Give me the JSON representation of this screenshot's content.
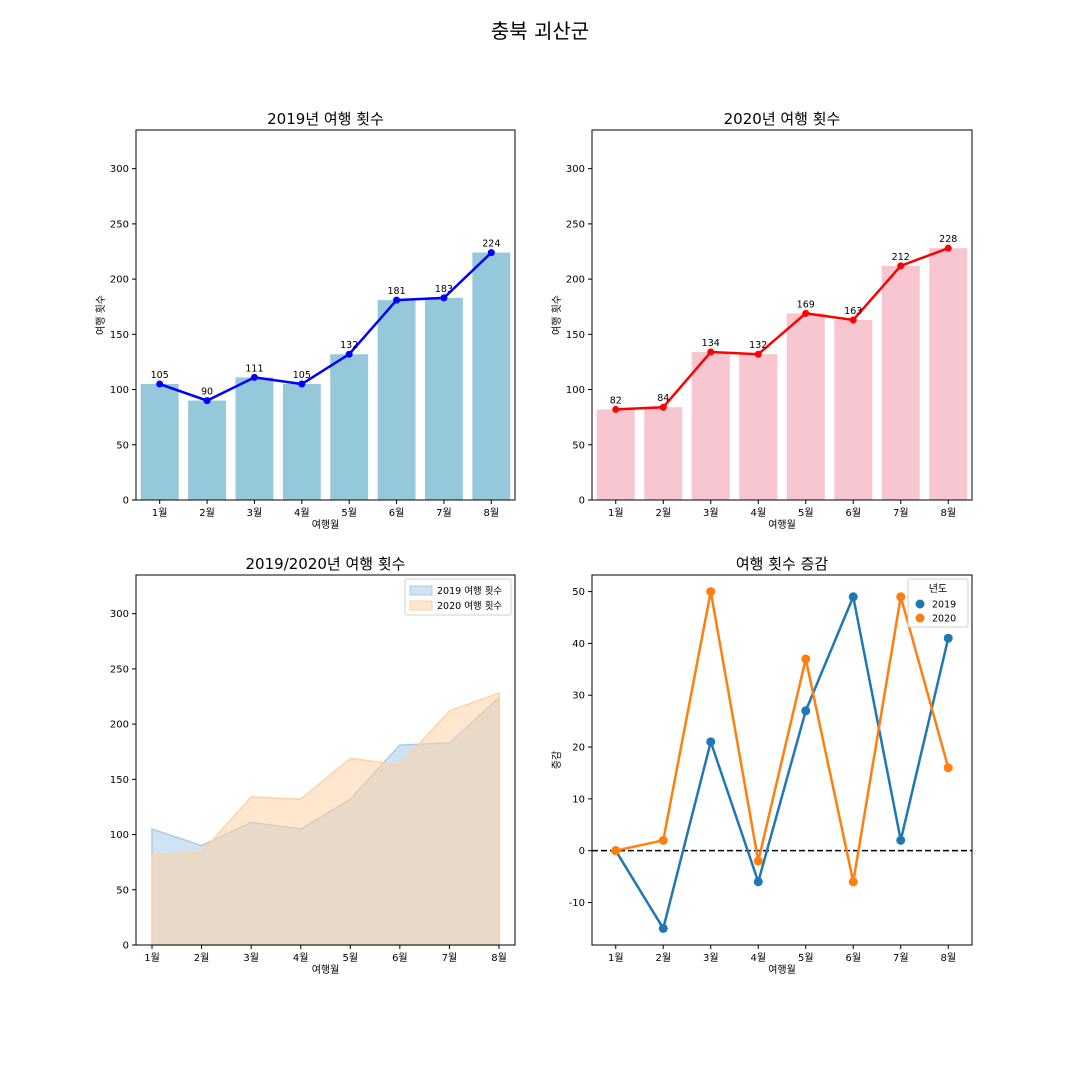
{
  "figure": {
    "title": "충북 괴산군"
  },
  "colors": {
    "bar2019": "#96c8dc",
    "line2019": "#0000ff",
    "bar2020": "#f7c6d0",
    "line2020": "#ff0000",
    "area2019": "#a8cce8",
    "area2020": "#ffd2a6",
    "diff2019": "#1f77b4",
    "diff2020": "#ff7f0e"
  },
  "chart_data": [
    {
      "type": "bar",
      "title": "2019년 여행 횟수",
      "xlabel": "여행월",
      "ylabel": "여행 횟수",
      "categories": [
        "1월",
        "2월",
        "3월",
        "4월",
        "5월",
        "6월",
        "7월",
        "8월"
      ],
      "values": [
        105,
        90,
        111,
        105,
        132,
        181,
        183,
        224
      ],
      "ylim": [
        0,
        335
      ],
      "yticks": [
        0,
        50,
        100,
        150,
        200,
        250,
        300
      ],
      "overlay": "line with markers and value labels"
    },
    {
      "type": "bar",
      "title": "2020년 여행 횟수",
      "xlabel": "여행월",
      "ylabel": "여행 횟수",
      "categories": [
        "1월",
        "2월",
        "3월",
        "4월",
        "5월",
        "6월",
        "7월",
        "8월"
      ],
      "values": [
        82,
        84,
        134,
        132,
        169,
        163,
        212,
        228
      ],
      "ylim": [
        0,
        335
      ],
      "yticks": [
        0,
        50,
        100,
        150,
        200,
        250,
        300
      ],
      "overlay": "line with markers and value labels"
    },
    {
      "type": "area",
      "title": "2019/2020년 여행 횟수",
      "xlabel": "여행월",
      "ylabel": "",
      "categories": [
        "1월",
        "2월",
        "3월",
        "4월",
        "5월",
        "6월",
        "7월",
        "8월"
      ],
      "series": [
        {
          "name": "2019 여행 횟수",
          "values": [
            105,
            90,
            111,
            105,
            132,
            181,
            183,
            224
          ]
        },
        {
          "name": "2020 여행 횟수",
          "values": [
            82,
            84,
            134,
            132,
            169,
            163,
            212,
            228
          ]
        }
      ],
      "ylim": [
        0,
        335
      ],
      "yticks": [
        0,
        50,
        100,
        150,
        200,
        250,
        300
      ],
      "legend": "top-right"
    },
    {
      "type": "line",
      "title": "여행 횟수 증감",
      "xlabel": "여행월",
      "ylabel": "증감",
      "categories": [
        "1월",
        "2월",
        "3월",
        "4월",
        "5월",
        "6월",
        "7월",
        "8월"
      ],
      "series": [
        {
          "name": "2019",
          "values": [
            0,
            -15,
            21,
            -6,
            27,
            49,
            2,
            41
          ]
        },
        {
          "name": "2020",
          "values": [
            0,
            2,
            50,
            -2,
            37,
            -6,
            49,
            16
          ]
        }
      ],
      "ylim": [
        -18.2,
        53.2
      ],
      "yticks": [
        -10,
        0,
        10,
        20,
        30,
        40,
        50
      ],
      "reference_line": 0,
      "legend_title": "년도",
      "legend": "top-right"
    }
  ]
}
